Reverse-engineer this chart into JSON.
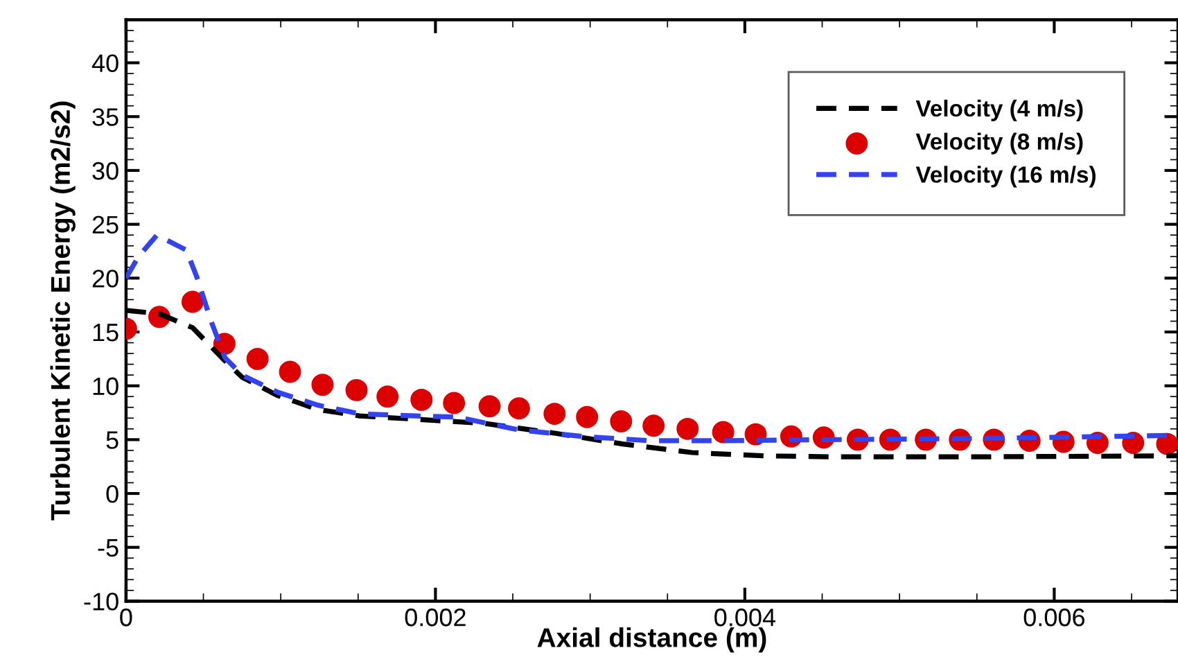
{
  "chart_data": {
    "type": "line",
    "xlabel": "Axial distance (m)",
    "ylabel": "Turbulent Kinetic Energy (m2/s2)",
    "xlim": [
      0,
      0.0068
    ],
    "ylim": [
      -10,
      44
    ],
    "xticks": [
      0,
      0.002,
      0.004,
      0.006
    ],
    "yticks": [
      -10,
      -5,
      0,
      5,
      10,
      15,
      20,
      25,
      30,
      35,
      40
    ],
    "grid": false,
    "legend": "top right",
    "series": [
      {
        "name": "Velocity (4 m/s)",
        "color": "#000000",
        "line_style": "dashed",
        "x": [
          0,
          0.000215,
          0.00043,
          0.00062,
          0.00075,
          0.00098,
          0.00124,
          0.00151,
          0.00187,
          0.00232,
          0.00277,
          0.00321,
          0.00366,
          0.00411,
          0.00456,
          0.00545,
          0.0068
        ],
        "values": [
          17,
          16.7,
          15.4,
          12.6,
          10.8,
          9.1,
          7.8,
          7.2,
          6.9,
          6.5,
          5.6,
          4.6,
          3.8,
          3.5,
          3.4,
          3.4,
          3.5
        ]
      },
      {
        "name": "Velocity (8 m/s)",
        "color": "#dd0000",
        "type": "scatter",
        "marker": "circle",
        "x": [
          0,
          0.000215,
          0.00043,
          0.000636,
          0.00085,
          0.00106,
          0.00127,
          0.00149,
          0.00169,
          0.00191,
          0.00212,
          0.00235,
          0.00254,
          0.00277,
          0.00298,
          0.0032,
          0.00341,
          0.00363,
          0.00386,
          0.00407,
          0.0043,
          0.00451,
          0.00473,
          0.00494,
          0.00517,
          0.00539,
          0.00561,
          0.00584,
          0.00606,
          0.00628,
          0.00651,
          0.00673
        ],
        "values": [
          15.3,
          16.4,
          17.8,
          13.9,
          12.5,
          11.3,
          10.1,
          9.6,
          9.0,
          8.7,
          8.4,
          8.1,
          7.9,
          7.4,
          7.1,
          6.7,
          6.3,
          6.0,
          5.7,
          5.5,
          5.3,
          5.2,
          5.0,
          5.0,
          5.0,
          5.0,
          5.0,
          4.9,
          4.8,
          4.7,
          4.7,
          4.6
        ]
      },
      {
        "name": "Velocity (16 m/s)",
        "color": "#3344ee",
        "line_style": "dashed",
        "x": [
          0,
          8e-05,
          0.0002,
          0.00039,
          0.00046,
          0.00055,
          0.00064,
          0.00075,
          0.00098,
          0.00124,
          0.00151,
          0.00187,
          0.00214,
          0.00254,
          0.00295,
          0.00339,
          0.00384,
          0.00456,
          0.00545,
          0.0068
        ],
        "values": [
          20,
          22,
          24,
          22.6,
          20,
          16,
          12.6,
          11,
          9.4,
          8.2,
          7.4,
          7.2,
          7.1,
          5.9,
          5.3,
          4.9,
          4.9,
          5.0,
          5.1,
          5.4
        ]
      }
    ]
  }
}
